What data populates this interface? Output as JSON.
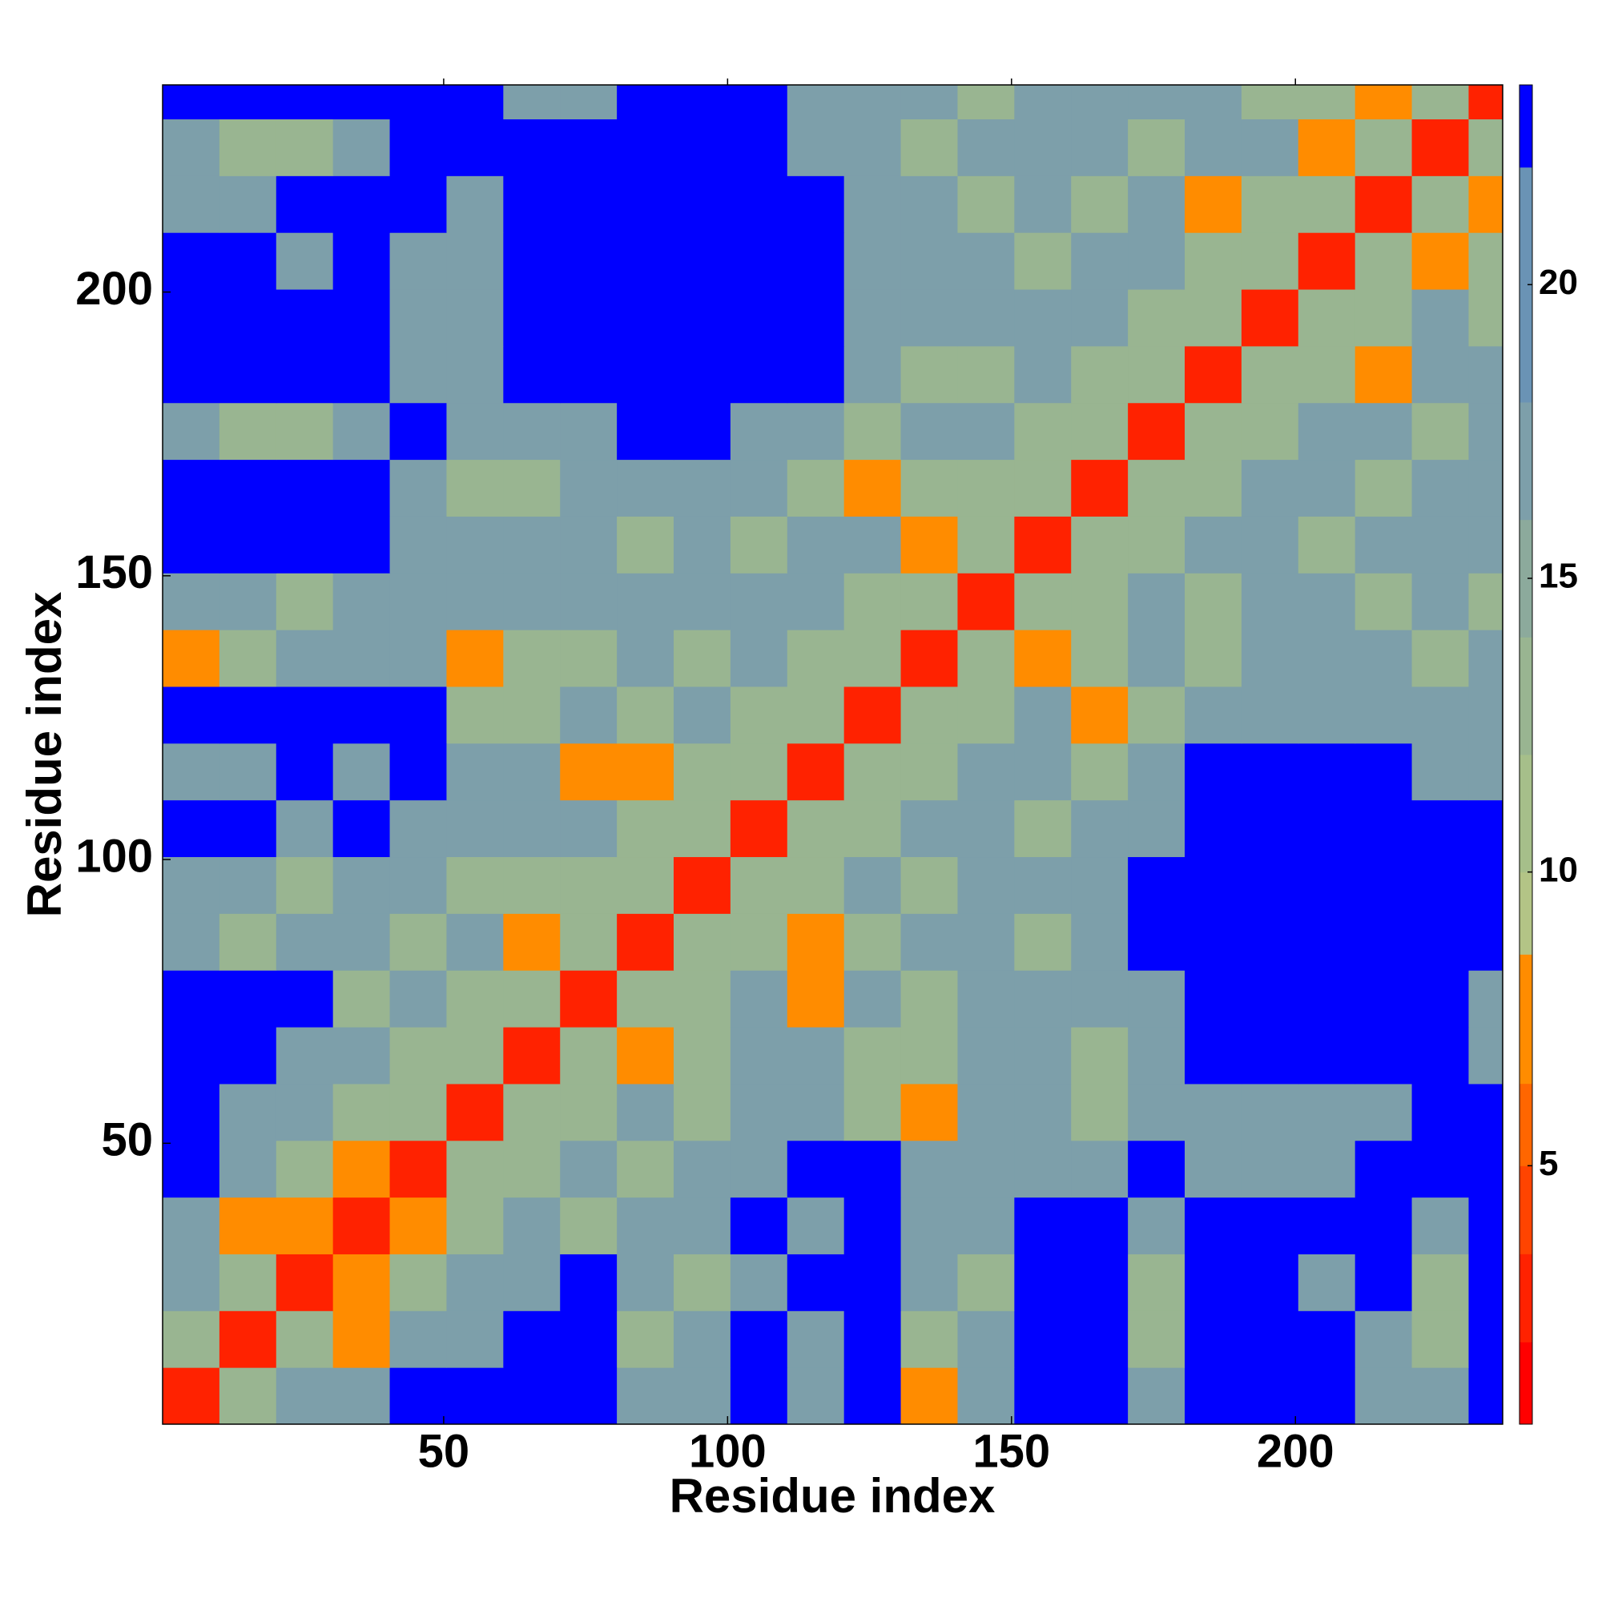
{
  "chart_data": {
    "type": "heatmap",
    "x_label": "Residue index",
    "y_label": "Residue index",
    "x": [
      5.5,
      15.5,
      25.5,
      35.5,
      45.5,
      55.5,
      65.5,
      75.5,
      85.5,
      95.5,
      105.5,
      115.5,
      125.5,
      135.5,
      145.5,
      155.5,
      165.5,
      175.5,
      185.5,
      195.5,
      205.5,
      215.5,
      225.5,
      235.5
    ],
    "y": [
      5.5,
      15.5,
      25.5,
      35.5,
      45.5,
      55.5,
      65.5,
      75.5,
      85.5,
      95.5,
      105.5,
      115.5,
      125.5,
      135.5,
      145.5,
      155.5,
      165.5,
      175.5,
      185.5,
      195.5,
      205.5,
      215.5,
      225.5,
      235.5
    ],
    "z": [
      [
        3,
        13,
        17,
        17,
        23,
        23,
        23,
        23,
        17,
        17,
        23,
        17,
        23,
        8,
        17,
        23,
        23,
        17,
        23,
        23,
        23,
        17,
        17,
        23
      ],
      [
        13,
        3,
        13,
        8,
        17,
        17,
        23,
        23,
        13,
        17,
        23,
        17,
        23,
        13,
        17,
        23,
        23,
        13,
        23,
        23,
        23,
        17,
        13,
        23
      ],
      [
        17,
        13,
        3,
        8,
        13,
        17,
        17,
        23,
        17,
        13,
        17,
        23,
        23,
        17,
        13,
        23,
        23,
        13,
        23,
        23,
        17,
        23,
        13,
        23
      ],
      [
        17,
        8,
        8,
        3,
        8,
        13,
        17,
        13,
        17,
        17,
        23,
        17,
        23,
        17,
        17,
        23,
        23,
        17,
        23,
        23,
        23,
        23,
        17,
        23
      ],
      [
        23,
        17,
        13,
        8,
        3,
        13,
        13,
        17,
        13,
        17,
        17,
        23,
        23,
        17,
        17,
        17,
        17,
        23,
        17,
        17,
        17,
        23,
        23,
        23
      ],
      [
        23,
        17,
        17,
        13,
        13,
        3,
        13,
        13,
        17,
        13,
        17,
        17,
        13,
        8,
        17,
        17,
        13,
        17,
        17,
        17,
        17,
        17,
        23,
        23
      ],
      [
        23,
        23,
        17,
        17,
        13,
        13,
        3,
        13,
        8,
        13,
        17,
        17,
        13,
        13,
        17,
        17,
        13,
        17,
        23,
        23,
        23,
        23,
        23,
        17
      ],
      [
        23,
        23,
        23,
        13,
        17,
        13,
        13,
        3,
        13,
        13,
        17,
        8,
        17,
        13,
        17,
        17,
        17,
        17,
        23,
        23,
        23,
        23,
        23,
        17
      ],
      [
        17,
        13,
        17,
        17,
        13,
        17,
        8,
        13,
        3,
        13,
        13,
        8,
        13,
        17,
        17,
        13,
        17,
        23,
        23,
        23,
        23,
        23,
        23,
        23
      ],
      [
        17,
        17,
        13,
        17,
        17,
        13,
        13,
        13,
        13,
        3,
        13,
        13,
        17,
        13,
        17,
        17,
        17,
        23,
        23,
        23,
        23,
        23,
        23,
        23
      ],
      [
        23,
        23,
        17,
        23,
        17,
        17,
        17,
        17,
        13,
        13,
        3,
        13,
        13,
        17,
        17,
        13,
        17,
        17,
        23,
        23,
        23,
        23,
        23,
        23
      ],
      [
        17,
        17,
        23,
        17,
        23,
        17,
        17,
        8,
        8,
        13,
        13,
        3,
        13,
        13,
        17,
        17,
        13,
        17,
        23,
        23,
        23,
        23,
        17,
        17
      ],
      [
        23,
        23,
        23,
        23,
        23,
        13,
        13,
        17,
        13,
        17,
        13,
        13,
        3,
        13,
        13,
        17,
        8,
        13,
        17,
        17,
        17,
        17,
        17,
        17
      ],
      [
        8,
        13,
        17,
        17,
        17,
        8,
        13,
        13,
        17,
        13,
        17,
        13,
        13,
        3,
        13,
        8,
        13,
        17,
        13,
        17,
        17,
        17,
        13,
        17
      ],
      [
        17,
        17,
        13,
        17,
        17,
        17,
        17,
        17,
        17,
        17,
        17,
        17,
        13,
        13,
        3,
        13,
        13,
        17,
        13,
        17,
        17,
        13,
        17,
        13
      ],
      [
        23,
        23,
        23,
        23,
        17,
        17,
        17,
        17,
        13,
        17,
        13,
        17,
        17,
        8,
        13,
        3,
        13,
        13,
        17,
        17,
        13,
        17,
        17,
        17
      ],
      [
        23,
        23,
        23,
        23,
        17,
        13,
        13,
        17,
        17,
        17,
        17,
        13,
        8,
        13,
        13,
        13,
        3,
        13,
        13,
        17,
        17,
        13,
        17,
        17
      ],
      [
        17,
        13,
        13,
        17,
        23,
        17,
        17,
        17,
        23,
        23,
        17,
        17,
        13,
        17,
        17,
        13,
        13,
        3,
        13,
        13,
        17,
        17,
        13,
        17
      ],
      [
        23,
        23,
        23,
        23,
        17,
        17,
        23,
        23,
        23,
        23,
        23,
        23,
        17,
        13,
        13,
        17,
        13,
        13,
        3,
        13,
        13,
        8,
        17,
        17
      ],
      [
        23,
        23,
        23,
        23,
        17,
        17,
        23,
        23,
        23,
        23,
        23,
        23,
        17,
        17,
        17,
        17,
        17,
        13,
        13,
        3,
        13,
        13,
        17,
        13
      ],
      [
        23,
        23,
        17,
        23,
        17,
        17,
        23,
        23,
        23,
        23,
        23,
        23,
        17,
        17,
        17,
        13,
        17,
        17,
        13,
        13,
        3,
        13,
        8,
        13
      ],
      [
        17,
        17,
        23,
        23,
        23,
        17,
        23,
        23,
        23,
        23,
        23,
        23,
        17,
        17,
        13,
        17,
        13,
        17,
        8,
        13,
        13,
        3,
        13,
        8
      ],
      [
        17,
        13,
        13,
        17,
        23,
        23,
        23,
        23,
        23,
        23,
        23,
        17,
        17,
        13,
        17,
        17,
        17,
        13,
        17,
        17,
        8,
        13,
        3,
        13
      ],
      [
        23,
        23,
        23,
        23,
        23,
        23,
        17,
        17,
        23,
        23,
        23,
        17,
        17,
        17,
        13,
        17,
        17,
        17,
        17,
        13,
        13,
        8,
        13,
        3
      ]
    ],
    "xlim": [
      0.5,
      236.5
    ],
    "ylim": [
      0.5,
      236.5
    ],
    "xticks": [
      50,
      100,
      150,
      200
    ],
    "yticks": [
      50,
      100,
      150,
      200
    ],
    "clim": [
      0.6,
      23.4
    ],
    "cticks": [
      5,
      10,
      15,
      20
    ],
    "levels": [
      0.6,
      2,
      3.5,
      5,
      6.4,
      8.6,
      10,
      12,
      14,
      16,
      18,
      22,
      23.4
    ],
    "level_colors": [
      "#ff0000",
      "#ff2200",
      "#ff4400",
      "#ff6600",
      "#ff8c00",
      "#b3c486",
      "#a6bf8a",
      "#99b591",
      "#8caa9c",
      "#7d9faa",
      "#6a93b5",
      "#0000ff"
    ]
  }
}
